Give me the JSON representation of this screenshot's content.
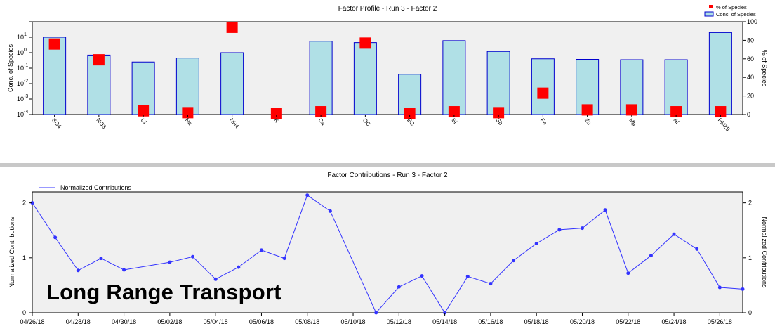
{
  "overlay_label": "Long Range Transport",
  "colors": {
    "plot_bg": "#f0f0f0",
    "bar_fill": "#b0e0e6",
    "bar_stroke": "#0000cd",
    "pct_marker": "#ff0000",
    "line": "#3333ff",
    "divider": "#c8c8c8"
  },
  "chart_data": [
    {
      "type": "bar",
      "title": "Factor Profile - Run 3 - Factor 2",
      "ylabel": "Conc. of Species",
      "ylabel_right": "% of Species",
      "yscale": "log",
      "ylim": [
        0.0001,
        100
      ],
      "y_ticks": [
        "10-4",
        "10-3",
        "10-2",
        "10-1",
        "100",
        "101"
      ],
      "y_right_lim": [
        0,
        100
      ],
      "y_right_ticks": [
        0,
        20,
        40,
        60,
        80,
        100
      ],
      "legend": [
        "% of Species",
        "Conc. of Species"
      ],
      "legend_position": "top-right",
      "categories": [
        "SO4",
        "NO3",
        "Cl",
        "Na",
        "NH4",
        "K",
        "Ca",
        "OC",
        "EC",
        "Si",
        "Sb",
        "Fe",
        "Zn",
        "Mg",
        "Al",
        "PM25"
      ],
      "series": [
        {
          "name": "Conc. of Species",
          "values": [
            10,
            0.7,
            0.25,
            0.45,
            1.0,
            null,
            5.5,
            4.5,
            0.04,
            6.0,
            1.2,
            0.4,
            0.37,
            0.35,
            0.35,
            20
          ]
        },
        {
          "name": "% of Species",
          "values": [
            76,
            59,
            4,
            2,
            94,
            1,
            3,
            77,
            1,
            3,
            2,
            23,
            5,
            5,
            3,
            3
          ]
        }
      ]
    },
    {
      "type": "line",
      "title": "Factor Contributions - Run 3 - Factor 2",
      "ylabel": "Normalized Contributions",
      "ylabel_right": "Normalized Contributions",
      "ylim": [
        0,
        2.2
      ],
      "y_ticks": [
        0,
        1,
        2
      ],
      "legend": [
        "Normalized Contributions"
      ],
      "legend_position": "top-left",
      "x_ticks": [
        "04/26/18",
        "04/28/18",
        "04/30/18",
        "05/02/18",
        "05/04/18",
        "05/06/18",
        "05/08/18",
        "05/10/18",
        "05/12/18",
        "05/14/18",
        "05/16/18",
        "05/18/18",
        "05/20/18",
        "05/22/18",
        "05/24/18",
        "05/26/18"
      ],
      "xlim": [
        "04/26/18",
        "05/27/18"
      ],
      "series": [
        {
          "name": "Normalized Contributions",
          "points": [
            [
              "04/26/18",
              2.0
            ],
            [
              "04/27/18",
              1.37
            ],
            [
              "04/28/18",
              0.77
            ],
            [
              "04/29/18",
              0.99
            ],
            [
              "04/30/18",
              0.78
            ],
            [
              "05/02/18",
              0.92
            ],
            [
              "05/03/18",
              1.02
            ],
            [
              "05/04/18",
              0.61
            ],
            [
              "05/05/18",
              0.83
            ],
            [
              "05/06/18",
              1.14
            ],
            [
              "05/07/18",
              0.99
            ],
            [
              "05/08/18",
              2.14
            ],
            [
              "05/09/18",
              1.85
            ],
            [
              "05/11/18",
              0.0
            ],
            [
              "05/12/18",
              0.47
            ],
            [
              "05/13/18",
              0.67
            ],
            [
              "05/14/18",
              0.0
            ],
            [
              "05/15/18",
              0.66
            ],
            [
              "05/16/18",
              0.53
            ],
            [
              "05/17/18",
              0.95
            ],
            [
              "05/18/18",
              1.26
            ],
            [
              "05/19/18",
              1.51
            ],
            [
              "05/20/18",
              1.54
            ],
            [
              "05/21/18",
              1.87
            ],
            [
              "05/22/18",
              0.72
            ],
            [
              "05/23/18",
              1.04
            ],
            [
              "05/24/18",
              1.43
            ],
            [
              "05/25/18",
              1.16
            ],
            [
              "05/26/18",
              0.46
            ],
            [
              "05/27/18",
              0.43
            ]
          ]
        }
      ]
    }
  ]
}
